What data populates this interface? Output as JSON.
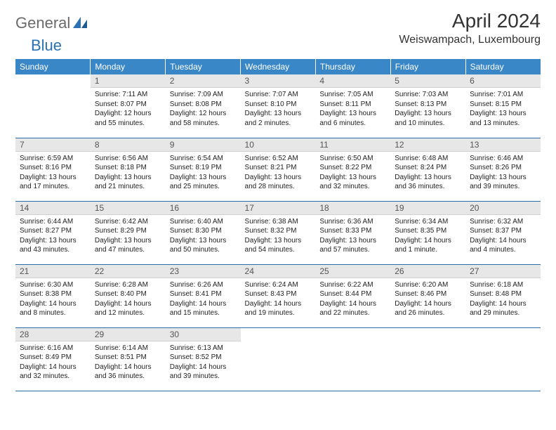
{
  "logo": {
    "text1": "General",
    "text2": "Blue"
  },
  "title": "April 2024",
  "location": "Weiswampach, Luxembourg",
  "colors": {
    "header_bg": "#3a87c8",
    "header_text": "#ffffff",
    "daynum_bg": "#e7e7e7",
    "row_border": "#2a6ea8",
    "logo_gray": "#6b6b6b",
    "logo_blue": "#2a72b5"
  },
  "weekdays": [
    "Sunday",
    "Monday",
    "Tuesday",
    "Wednesday",
    "Thursday",
    "Friday",
    "Saturday"
  ],
  "weeks": [
    [
      {
        "num": "",
        "sunrise": "",
        "sunset": "",
        "daylight": ""
      },
      {
        "num": "1",
        "sunrise": "Sunrise: 7:11 AM",
        "sunset": "Sunset: 8:07 PM",
        "daylight": "Daylight: 12 hours and 55 minutes."
      },
      {
        "num": "2",
        "sunrise": "Sunrise: 7:09 AM",
        "sunset": "Sunset: 8:08 PM",
        "daylight": "Daylight: 12 hours and 58 minutes."
      },
      {
        "num": "3",
        "sunrise": "Sunrise: 7:07 AM",
        "sunset": "Sunset: 8:10 PM",
        "daylight": "Daylight: 13 hours and 2 minutes."
      },
      {
        "num": "4",
        "sunrise": "Sunrise: 7:05 AM",
        "sunset": "Sunset: 8:11 PM",
        "daylight": "Daylight: 13 hours and 6 minutes."
      },
      {
        "num": "5",
        "sunrise": "Sunrise: 7:03 AM",
        "sunset": "Sunset: 8:13 PM",
        "daylight": "Daylight: 13 hours and 10 minutes."
      },
      {
        "num": "6",
        "sunrise": "Sunrise: 7:01 AM",
        "sunset": "Sunset: 8:15 PM",
        "daylight": "Daylight: 13 hours and 13 minutes."
      }
    ],
    [
      {
        "num": "7",
        "sunrise": "Sunrise: 6:59 AM",
        "sunset": "Sunset: 8:16 PM",
        "daylight": "Daylight: 13 hours and 17 minutes."
      },
      {
        "num": "8",
        "sunrise": "Sunrise: 6:56 AM",
        "sunset": "Sunset: 8:18 PM",
        "daylight": "Daylight: 13 hours and 21 minutes."
      },
      {
        "num": "9",
        "sunrise": "Sunrise: 6:54 AM",
        "sunset": "Sunset: 8:19 PM",
        "daylight": "Daylight: 13 hours and 25 minutes."
      },
      {
        "num": "10",
        "sunrise": "Sunrise: 6:52 AM",
        "sunset": "Sunset: 8:21 PM",
        "daylight": "Daylight: 13 hours and 28 minutes."
      },
      {
        "num": "11",
        "sunrise": "Sunrise: 6:50 AM",
        "sunset": "Sunset: 8:22 PM",
        "daylight": "Daylight: 13 hours and 32 minutes."
      },
      {
        "num": "12",
        "sunrise": "Sunrise: 6:48 AM",
        "sunset": "Sunset: 8:24 PM",
        "daylight": "Daylight: 13 hours and 36 minutes."
      },
      {
        "num": "13",
        "sunrise": "Sunrise: 6:46 AM",
        "sunset": "Sunset: 8:26 PM",
        "daylight": "Daylight: 13 hours and 39 minutes."
      }
    ],
    [
      {
        "num": "14",
        "sunrise": "Sunrise: 6:44 AM",
        "sunset": "Sunset: 8:27 PM",
        "daylight": "Daylight: 13 hours and 43 minutes."
      },
      {
        "num": "15",
        "sunrise": "Sunrise: 6:42 AM",
        "sunset": "Sunset: 8:29 PM",
        "daylight": "Daylight: 13 hours and 47 minutes."
      },
      {
        "num": "16",
        "sunrise": "Sunrise: 6:40 AM",
        "sunset": "Sunset: 8:30 PM",
        "daylight": "Daylight: 13 hours and 50 minutes."
      },
      {
        "num": "17",
        "sunrise": "Sunrise: 6:38 AM",
        "sunset": "Sunset: 8:32 PM",
        "daylight": "Daylight: 13 hours and 54 minutes."
      },
      {
        "num": "18",
        "sunrise": "Sunrise: 6:36 AM",
        "sunset": "Sunset: 8:33 PM",
        "daylight": "Daylight: 13 hours and 57 minutes."
      },
      {
        "num": "19",
        "sunrise": "Sunrise: 6:34 AM",
        "sunset": "Sunset: 8:35 PM",
        "daylight": "Daylight: 14 hours and 1 minute."
      },
      {
        "num": "20",
        "sunrise": "Sunrise: 6:32 AM",
        "sunset": "Sunset: 8:37 PM",
        "daylight": "Daylight: 14 hours and 4 minutes."
      }
    ],
    [
      {
        "num": "21",
        "sunrise": "Sunrise: 6:30 AM",
        "sunset": "Sunset: 8:38 PM",
        "daylight": "Daylight: 14 hours and 8 minutes."
      },
      {
        "num": "22",
        "sunrise": "Sunrise: 6:28 AM",
        "sunset": "Sunset: 8:40 PM",
        "daylight": "Daylight: 14 hours and 12 minutes."
      },
      {
        "num": "23",
        "sunrise": "Sunrise: 6:26 AM",
        "sunset": "Sunset: 8:41 PM",
        "daylight": "Daylight: 14 hours and 15 minutes."
      },
      {
        "num": "24",
        "sunrise": "Sunrise: 6:24 AM",
        "sunset": "Sunset: 8:43 PM",
        "daylight": "Daylight: 14 hours and 19 minutes."
      },
      {
        "num": "25",
        "sunrise": "Sunrise: 6:22 AM",
        "sunset": "Sunset: 8:44 PM",
        "daylight": "Daylight: 14 hours and 22 minutes."
      },
      {
        "num": "26",
        "sunrise": "Sunrise: 6:20 AM",
        "sunset": "Sunset: 8:46 PM",
        "daylight": "Daylight: 14 hours and 26 minutes."
      },
      {
        "num": "27",
        "sunrise": "Sunrise: 6:18 AM",
        "sunset": "Sunset: 8:48 PM",
        "daylight": "Daylight: 14 hours and 29 minutes."
      }
    ],
    [
      {
        "num": "28",
        "sunrise": "Sunrise: 6:16 AM",
        "sunset": "Sunset: 8:49 PM",
        "daylight": "Daylight: 14 hours and 32 minutes."
      },
      {
        "num": "29",
        "sunrise": "Sunrise: 6:14 AM",
        "sunset": "Sunset: 8:51 PM",
        "daylight": "Daylight: 14 hours and 36 minutes."
      },
      {
        "num": "30",
        "sunrise": "Sunrise: 6:13 AM",
        "sunset": "Sunset: 8:52 PM",
        "daylight": "Daylight: 14 hours and 39 minutes."
      },
      {
        "num": "",
        "sunrise": "",
        "sunset": "",
        "daylight": ""
      },
      {
        "num": "",
        "sunrise": "",
        "sunset": "",
        "daylight": ""
      },
      {
        "num": "",
        "sunrise": "",
        "sunset": "",
        "daylight": ""
      },
      {
        "num": "",
        "sunrise": "",
        "sunset": "",
        "daylight": ""
      }
    ]
  ]
}
